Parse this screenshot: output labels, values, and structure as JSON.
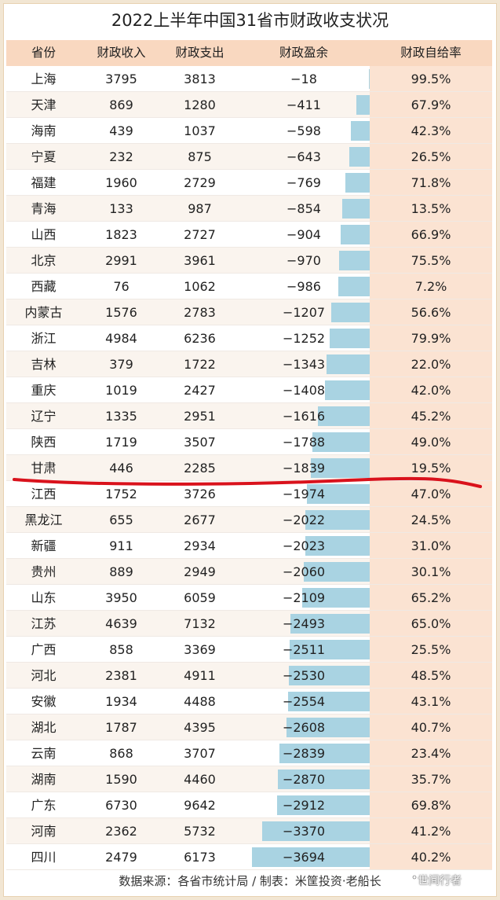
{
  "chart_data": {
    "type": "table",
    "title": "2022上半年中国31省市财政收支状况",
    "columns": [
      "省份",
      "财政收入",
      "财政支出",
      "财政盈余",
      "财政自给率"
    ],
    "rows": [
      {
        "province": "上海",
        "revenue": "3795",
        "expenditure": "3813",
        "surplus": "−18",
        "surplus_value": -18,
        "ratio": "99.5%"
      },
      {
        "province": "天津",
        "revenue": "869",
        "expenditure": "1280",
        "surplus": "−411",
        "surplus_value": -411,
        "ratio": "67.9%"
      },
      {
        "province": "海南",
        "revenue": "439",
        "expenditure": "1037",
        "surplus": "−598",
        "surplus_value": -598,
        "ratio": "42.3%"
      },
      {
        "province": "宁夏",
        "revenue": "232",
        "expenditure": "875",
        "surplus": "−643",
        "surplus_value": -643,
        "ratio": "26.5%"
      },
      {
        "province": "福建",
        "revenue": "1960",
        "expenditure": "2729",
        "surplus": "−769",
        "surplus_value": -769,
        "ratio": "71.8%"
      },
      {
        "province": "青海",
        "revenue": "133",
        "expenditure": "987",
        "surplus": "−854",
        "surplus_value": -854,
        "ratio": "13.5%"
      },
      {
        "province": "山西",
        "revenue": "1823",
        "expenditure": "2727",
        "surplus": "−904",
        "surplus_value": -904,
        "ratio": "66.9%"
      },
      {
        "province": "北京",
        "revenue": "2991",
        "expenditure": "3961",
        "surplus": "−970",
        "surplus_value": -970,
        "ratio": "75.5%"
      },
      {
        "province": "西藏",
        "revenue": "76",
        "expenditure": "1062",
        "surplus": "−986",
        "surplus_value": -986,
        "ratio": "7.2%"
      },
      {
        "province": "内蒙古",
        "revenue": "1576",
        "expenditure": "2783",
        "surplus": "−1207",
        "surplus_value": -1207,
        "ratio": "56.6%"
      },
      {
        "province": "浙江",
        "revenue": "4984",
        "expenditure": "6236",
        "surplus": "−1252",
        "surplus_value": -1252,
        "ratio": "79.9%"
      },
      {
        "province": "吉林",
        "revenue": "379",
        "expenditure": "1722",
        "surplus": "−1343",
        "surplus_value": -1343,
        "ratio": "22.0%"
      },
      {
        "province": "重庆",
        "revenue": "1019",
        "expenditure": "2427",
        "surplus": "−1408",
        "surplus_value": -1408,
        "ratio": "42.0%"
      },
      {
        "province": "辽宁",
        "revenue": "1335",
        "expenditure": "2951",
        "surplus": "−1616",
        "surplus_value": -1616,
        "ratio": "45.2%"
      },
      {
        "province": "陕西",
        "revenue": "1719",
        "expenditure": "3507",
        "surplus": "−1788",
        "surplus_value": -1788,
        "ratio": "49.0%"
      },
      {
        "province": "甘肃",
        "revenue": "446",
        "expenditure": "2285",
        "surplus": "−1839",
        "surplus_value": -1839,
        "ratio": "19.5%"
      },
      {
        "province": "江西",
        "revenue": "1752",
        "expenditure": "3726",
        "surplus": "−1974",
        "surplus_value": -1974,
        "ratio": "47.0%"
      },
      {
        "province": "黑龙江",
        "revenue": "655",
        "expenditure": "2677",
        "surplus": "−2022",
        "surplus_value": -2022,
        "ratio": "24.5%"
      },
      {
        "province": "新疆",
        "revenue": "911",
        "expenditure": "2934",
        "surplus": "−2023",
        "surplus_value": -2023,
        "ratio": "31.0%"
      },
      {
        "province": "贵州",
        "revenue": "889",
        "expenditure": "2949",
        "surplus": "−2060",
        "surplus_value": -2060,
        "ratio": "30.1%"
      },
      {
        "province": "山东",
        "revenue": "3950",
        "expenditure": "6059",
        "surplus": "−2109",
        "surplus_value": -2109,
        "ratio": "65.2%"
      },
      {
        "province": "江苏",
        "revenue": "4639",
        "expenditure": "7132",
        "surplus": "−2493",
        "surplus_value": -2493,
        "ratio": "65.0%"
      },
      {
        "province": "广西",
        "revenue": "858",
        "expenditure": "3369",
        "surplus": "−2511",
        "surplus_value": -2511,
        "ratio": "25.5%"
      },
      {
        "province": "河北",
        "revenue": "2381",
        "expenditure": "4911",
        "surplus": "−2530",
        "surplus_value": -2530,
        "ratio": "48.5%"
      },
      {
        "province": "安徽",
        "revenue": "1934",
        "expenditure": "4488",
        "surplus": "−2554",
        "surplus_value": -2554,
        "ratio": "43.1%"
      },
      {
        "province": "湖北",
        "revenue": "1787",
        "expenditure": "4395",
        "surplus": "−2608",
        "surplus_value": -2608,
        "ratio": "40.7%"
      },
      {
        "province": "云南",
        "revenue": "868",
        "expenditure": "3707",
        "surplus": "−2839",
        "surplus_value": -2839,
        "ratio": "23.4%"
      },
      {
        "province": "湖南",
        "revenue": "1590",
        "expenditure": "4460",
        "surplus": "−2870",
        "surplus_value": -2870,
        "ratio": "35.7%"
      },
      {
        "province": "广东",
        "revenue": "6730",
        "expenditure": "9642",
        "surplus": "−2912",
        "surplus_value": -2912,
        "ratio": "69.8%"
      },
      {
        "province": "河南",
        "revenue": "2362",
        "expenditure": "5732",
        "surplus": "−3370",
        "surplus_value": -3370,
        "ratio": "41.2%"
      },
      {
        "province": "四川",
        "revenue": "2479",
        "expenditure": "6173",
        "surplus": "−3694",
        "surplus_value": -3694,
        "ratio": "40.2%"
      }
    ],
    "bar_color": "#a9d3e2",
    "highlight_line_color": "#d9121c",
    "highlight_after_province": "甘肃"
  },
  "footer": "数据来源：各省市统计局 / 制表：米筐投资·老船长",
  "watermark": "世间行者"
}
